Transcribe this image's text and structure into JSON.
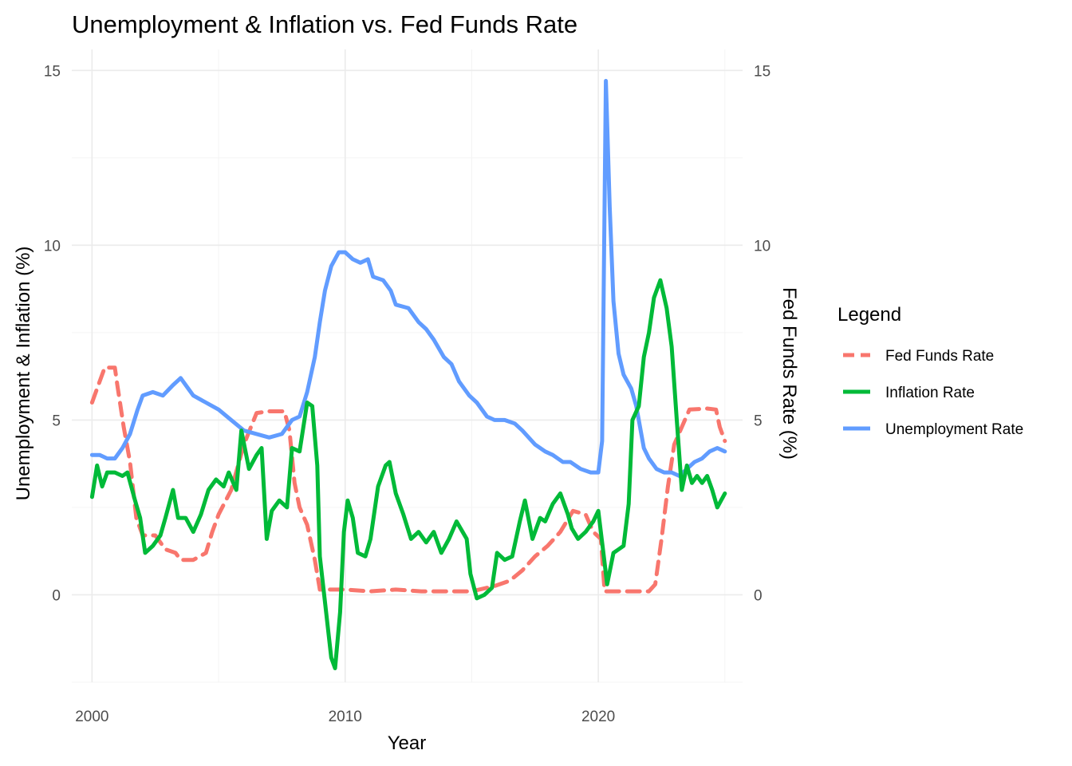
{
  "chart_data": {
    "type": "line",
    "title": "Unemployment & Inflation vs. Fed Funds Rate",
    "xlabel": "Year",
    "ylabel": "Unemployment & Inflation (%)",
    "ylabel_right": "Fed Funds Rate (%)",
    "xlim": [
      1999.2,
      2025.7
    ],
    "ylim": [
      -2.5,
      15.6
    ],
    "x_ticks": [
      "2000",
      "2010",
      "2020"
    ],
    "y_ticks": [
      "0",
      "5",
      "10",
      "15"
    ],
    "y_ticks_right": [
      "0",
      "5",
      "10",
      "15"
    ],
    "grid": true,
    "legend": {
      "title": "Legend",
      "position": "right",
      "entries": [
        "Fed Funds Rate",
        "Inflation Rate",
        "Unemployment Rate"
      ]
    },
    "series": [
      {
        "name": "Fed Funds Rate",
        "color": "#F8766D",
        "style": "dashed",
        "points": [
          [
            2000.0,
            5.5
          ],
          [
            2000.25,
            6.0
          ],
          [
            2000.5,
            6.5
          ],
          [
            2000.9,
            6.5
          ],
          [
            2001.0,
            6.0
          ],
          [
            2001.25,
            4.8
          ],
          [
            2001.5,
            3.8
          ],
          [
            2001.75,
            2.2
          ],
          [
            2002.0,
            1.7
          ],
          [
            2002.5,
            1.7
          ],
          [
            2002.9,
            1.3
          ],
          [
            2003.3,
            1.2
          ],
          [
            2003.5,
            1.0
          ],
          [
            2004.0,
            1.0
          ],
          [
            2004.5,
            1.2
          ],
          [
            2004.75,
            1.8
          ],
          [
            2005.0,
            2.3
          ],
          [
            2005.5,
            3.0
          ],
          [
            2006.0,
            4.3
          ],
          [
            2006.5,
            5.2
          ],
          [
            2007.0,
            5.25
          ],
          [
            2007.6,
            5.25
          ],
          [
            2007.8,
            4.7
          ],
          [
            2008.0,
            3.2
          ],
          [
            2008.2,
            2.5
          ],
          [
            2008.5,
            2.0
          ],
          [
            2008.8,
            1.0
          ],
          [
            2009.0,
            0.15
          ],
          [
            2010.0,
            0.15
          ],
          [
            2011.0,
            0.1
          ],
          [
            2012.0,
            0.15
          ],
          [
            2013.0,
            0.1
          ],
          [
            2014.0,
            0.1
          ],
          [
            2015.0,
            0.1
          ],
          [
            2015.9,
            0.25
          ],
          [
            2016.5,
            0.4
          ],
          [
            2017.0,
            0.7
          ],
          [
            2017.5,
            1.1
          ],
          [
            2018.0,
            1.4
          ],
          [
            2018.5,
            1.8
          ],
          [
            2019.0,
            2.4
          ],
          [
            2019.5,
            2.3
          ],
          [
            2019.8,
            1.8
          ],
          [
            2020.1,
            1.6
          ],
          [
            2020.25,
            0.1
          ],
          [
            2021.0,
            0.1
          ],
          [
            2022.0,
            0.1
          ],
          [
            2022.25,
            0.3
          ],
          [
            2022.5,
            1.6
          ],
          [
            2022.75,
            3.1
          ],
          [
            2023.0,
            4.3
          ],
          [
            2023.3,
            4.8
          ],
          [
            2023.6,
            5.3
          ],
          [
            2024.3,
            5.33
          ],
          [
            2024.65,
            5.3
          ],
          [
            2024.8,
            4.8
          ],
          [
            2025.0,
            4.4
          ]
        ]
      },
      {
        "name": "Inflation Rate",
        "color": "#00BA38",
        "style": "solid",
        "points": [
          [
            2000.0,
            2.8
          ],
          [
            2000.2,
            3.7
          ],
          [
            2000.4,
            3.1
          ],
          [
            2000.6,
            3.5
          ],
          [
            2000.9,
            3.5
          ],
          [
            2001.2,
            3.4
          ],
          [
            2001.4,
            3.5
          ],
          [
            2001.7,
            2.7
          ],
          [
            2001.9,
            2.2
          ],
          [
            2002.1,
            1.2
          ],
          [
            2002.4,
            1.4
          ],
          [
            2002.7,
            1.7
          ],
          [
            2002.9,
            2.2
          ],
          [
            2003.2,
            3.0
          ],
          [
            2003.4,
            2.2
          ],
          [
            2003.7,
            2.2
          ],
          [
            2004.0,
            1.8
          ],
          [
            2004.3,
            2.3
          ],
          [
            2004.6,
            3.0
          ],
          [
            2004.9,
            3.3
          ],
          [
            2005.2,
            3.1
          ],
          [
            2005.4,
            3.5
          ],
          [
            2005.7,
            3.0
          ],
          [
            2005.9,
            4.7
          ],
          [
            2006.2,
            3.6
          ],
          [
            2006.5,
            4.0
          ],
          [
            2006.7,
            4.2
          ],
          [
            2006.9,
            1.6
          ],
          [
            2007.1,
            2.4
          ],
          [
            2007.4,
            2.7
          ],
          [
            2007.7,
            2.5
          ],
          [
            2007.9,
            4.2
          ],
          [
            2008.2,
            4.1
          ],
          [
            2008.5,
            5.5
          ],
          [
            2008.7,
            5.4
          ],
          [
            2008.9,
            3.7
          ],
          [
            2009.0,
            1.1
          ],
          [
            2009.2,
            -0.2
          ],
          [
            2009.45,
            -1.8
          ],
          [
            2009.6,
            -2.1
          ],
          [
            2009.8,
            -0.5
          ],
          [
            2009.95,
            1.8
          ],
          [
            2010.1,
            2.7
          ],
          [
            2010.3,
            2.2
          ],
          [
            2010.5,
            1.2
          ],
          [
            2010.8,
            1.1
          ],
          [
            2011.0,
            1.6
          ],
          [
            2011.3,
            3.1
          ],
          [
            2011.6,
            3.7
          ],
          [
            2011.75,
            3.8
          ],
          [
            2012.0,
            2.9
          ],
          [
            2012.3,
            2.3
          ],
          [
            2012.6,
            1.6
          ],
          [
            2012.9,
            1.8
          ],
          [
            2013.2,
            1.5
          ],
          [
            2013.5,
            1.8
          ],
          [
            2013.8,
            1.2
          ],
          [
            2014.1,
            1.6
          ],
          [
            2014.4,
            2.1
          ],
          [
            2014.8,
            1.6
          ],
          [
            2014.95,
            0.6
          ],
          [
            2015.2,
            -0.1
          ],
          [
            2015.5,
            0.0
          ],
          [
            2015.8,
            0.2
          ],
          [
            2016.0,
            1.2
          ],
          [
            2016.3,
            1.0
          ],
          [
            2016.6,
            1.1
          ],
          [
            2016.9,
            2.1
          ],
          [
            2017.1,
            2.7
          ],
          [
            2017.4,
            1.6
          ],
          [
            2017.7,
            2.2
          ],
          [
            2017.9,
            2.1
          ],
          [
            2018.2,
            2.6
          ],
          [
            2018.5,
            2.9
          ],
          [
            2018.8,
            2.3
          ],
          [
            2018.95,
            1.9
          ],
          [
            2019.2,
            1.6
          ],
          [
            2019.5,
            1.8
          ],
          [
            2019.8,
            2.1
          ],
          [
            2020.0,
            2.4
          ],
          [
            2020.2,
            1.2
          ],
          [
            2020.35,
            0.3
          ],
          [
            2020.6,
            1.2
          ],
          [
            2020.8,
            1.3
          ],
          [
            2021.0,
            1.4
          ],
          [
            2021.2,
            2.6
          ],
          [
            2021.35,
            5.0
          ],
          [
            2021.6,
            5.4
          ],
          [
            2021.8,
            6.8
          ],
          [
            2022.0,
            7.5
          ],
          [
            2022.2,
            8.5
          ],
          [
            2022.45,
            9.0
          ],
          [
            2022.7,
            8.2
          ],
          [
            2022.9,
            7.1
          ],
          [
            2023.1,
            5.0
          ],
          [
            2023.3,
            3.0
          ],
          [
            2023.5,
            3.7
          ],
          [
            2023.7,
            3.2
          ],
          [
            2023.9,
            3.4
          ],
          [
            2024.1,
            3.2
          ],
          [
            2024.3,
            3.4
          ],
          [
            2024.5,
            3.0
          ],
          [
            2024.7,
            2.5
          ],
          [
            2025.0,
            2.9
          ]
        ]
      },
      {
        "name": "Unemployment Rate",
        "color": "#619CFF",
        "style": "solid",
        "points": [
          [
            2000.0,
            4.0
          ],
          [
            2000.3,
            4.0
          ],
          [
            2000.6,
            3.9
          ],
          [
            2000.9,
            3.9
          ],
          [
            2001.2,
            4.2
          ],
          [
            2001.5,
            4.6
          ],
          [
            2001.8,
            5.3
          ],
          [
            2002.0,
            5.7
          ],
          [
            2002.4,
            5.8
          ],
          [
            2002.8,
            5.7
          ],
          [
            2003.2,
            6.0
          ],
          [
            2003.5,
            6.2
          ],
          [
            2003.8,
            5.9
          ],
          [
            2004.0,
            5.7
          ],
          [
            2004.5,
            5.5
          ],
          [
            2005.0,
            5.3
          ],
          [
            2005.5,
            5.0
          ],
          [
            2006.0,
            4.7
          ],
          [
            2006.5,
            4.6
          ],
          [
            2007.0,
            4.5
          ],
          [
            2007.5,
            4.6
          ],
          [
            2007.9,
            5.0
          ],
          [
            2008.2,
            5.1
          ],
          [
            2008.5,
            5.8
          ],
          [
            2008.8,
            6.8
          ],
          [
            2009.0,
            7.8
          ],
          [
            2009.2,
            8.7
          ],
          [
            2009.45,
            9.4
          ],
          [
            2009.75,
            9.8
          ],
          [
            2010.0,
            9.8
          ],
          [
            2010.3,
            9.6
          ],
          [
            2010.6,
            9.5
          ],
          [
            2010.9,
            9.6
          ],
          [
            2011.1,
            9.1
          ],
          [
            2011.5,
            9.0
          ],
          [
            2011.8,
            8.7
          ],
          [
            2012.0,
            8.3
          ],
          [
            2012.5,
            8.2
          ],
          [
            2012.9,
            7.8
          ],
          [
            2013.2,
            7.6
          ],
          [
            2013.5,
            7.3
          ],
          [
            2013.9,
            6.8
          ],
          [
            2014.2,
            6.6
          ],
          [
            2014.5,
            6.1
          ],
          [
            2014.9,
            5.7
          ],
          [
            2015.2,
            5.5
          ],
          [
            2015.6,
            5.1
          ],
          [
            2015.9,
            5.0
          ],
          [
            2016.3,
            5.0
          ],
          [
            2016.7,
            4.9
          ],
          [
            2017.0,
            4.7
          ],
          [
            2017.5,
            4.3
          ],
          [
            2017.9,
            4.1
          ],
          [
            2018.2,
            4.0
          ],
          [
            2018.6,
            3.8
          ],
          [
            2018.9,
            3.8
          ],
          [
            2019.3,
            3.6
          ],
          [
            2019.7,
            3.5
          ],
          [
            2020.0,
            3.5
          ],
          [
            2020.15,
            4.4
          ],
          [
            2020.3,
            14.7
          ],
          [
            2020.45,
            11.1
          ],
          [
            2020.6,
            8.4
          ],
          [
            2020.8,
            6.9
          ],
          [
            2021.0,
            6.3
          ],
          [
            2021.3,
            5.9
          ],
          [
            2021.5,
            5.4
          ],
          [
            2021.8,
            4.2
          ],
          [
            2022.0,
            3.9
          ],
          [
            2022.3,
            3.6
          ],
          [
            2022.6,
            3.5
          ],
          [
            2022.9,
            3.5
          ],
          [
            2023.2,
            3.4
          ],
          [
            2023.5,
            3.6
          ],
          [
            2023.8,
            3.8
          ],
          [
            2024.1,
            3.9
          ],
          [
            2024.4,
            4.1
          ],
          [
            2024.7,
            4.2
          ],
          [
            2025.0,
            4.1
          ]
        ]
      }
    ]
  }
}
